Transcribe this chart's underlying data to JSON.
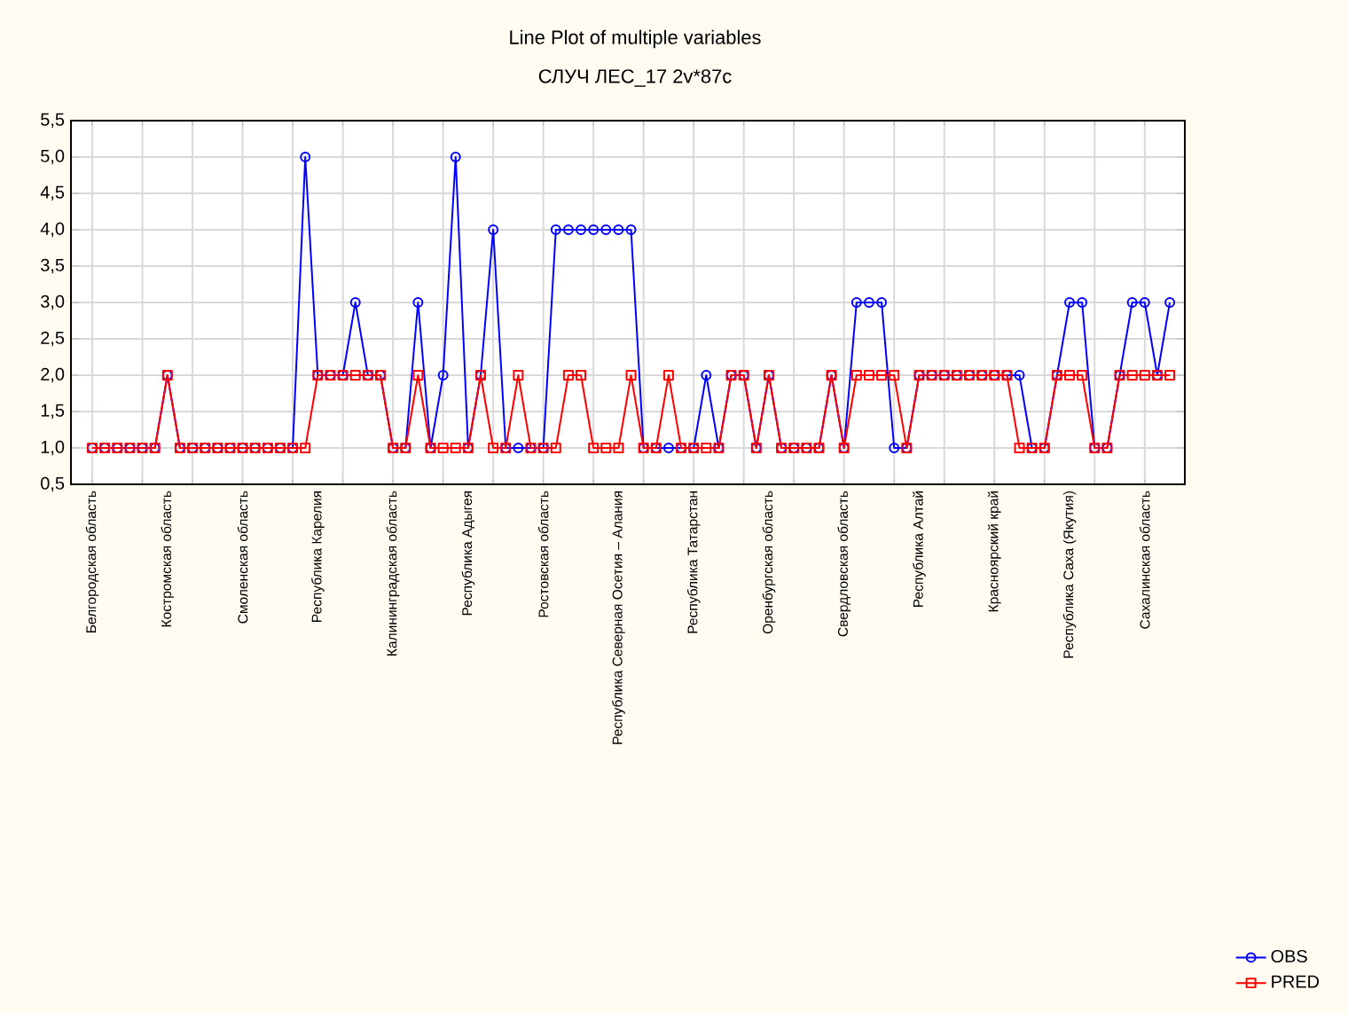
{
  "chart_data": {
    "type": "line",
    "title": "Line Plot of multiple variables",
    "subtitle": "СЛУЧ ЛЕС_17 2v*87c",
    "categories": [
      "Белгородская область",
      null,
      null,
      null,
      null,
      null,
      "Костромская область",
      null,
      null,
      null,
      null,
      null,
      "Смоленская область",
      null,
      null,
      null,
      null,
      null,
      "Республика  Карелия",
      null,
      null,
      null,
      null,
      null,
      "Калининградская область",
      null,
      null,
      null,
      null,
      null,
      "Республика  Адыгея",
      null,
      null,
      null,
      null,
      null,
      "Ростовская область",
      null,
      null,
      null,
      null,
      null,
      "Республика  Северная  Осетия  – Алания",
      null,
      null,
      null,
      null,
      null,
      "Республика Татарстан",
      null,
      null,
      null,
      null,
      null,
      "Оренбургская область",
      null,
      null,
      null,
      null,
      null,
      "Свердловская область",
      null,
      null,
      null,
      null,
      null,
      "Республика  Алтай",
      null,
      null,
      null,
      null,
      null,
      "Красноярский край",
      null,
      null,
      null,
      null,
      null,
      "Республика  Саха  (Якутия)",
      null,
      null,
      null,
      null,
      null,
      "Сахалинская область",
      null,
      null
    ],
    "series": [
      {
        "name": "OBS",
        "color": "#0000ff",
        "marker": "circle",
        "values": [
          1,
          1,
          1,
          1,
          1,
          1,
          2,
          1,
          1,
          1,
          1,
          1,
          1,
          1,
          1,
          1,
          1,
          5,
          2,
          2,
          2,
          3,
          2,
          2,
          1,
          1,
          3,
          1,
          2,
          5,
          1,
          2,
          4,
          1,
          1,
          1,
          1,
          4,
          4,
          4,
          4,
          4,
          4,
          4,
          1,
          1,
          1,
          1,
          1,
          2,
          1,
          2,
          2,
          1,
          2,
          1,
          1,
          1,
          1,
          2,
          1,
          3,
          3,
          3,
          1,
          1,
          2,
          2,
          2,
          2,
          2,
          2,
          2,
          2,
          2,
          1,
          1,
          2,
          3,
          3,
          1,
          1,
          2,
          3,
          3,
          2,
          3
        ]
      },
      {
        "name": "PRED",
        "color": "#ff0000",
        "marker": "square",
        "values": [
          1,
          1,
          1,
          1,
          1,
          1,
          2,
          1,
          1,
          1,
          1,
          1,
          1,
          1,
          1,
          1,
          1,
          1,
          2,
          2,
          2,
          2,
          2,
          2,
          1,
          1,
          2,
          1,
          1,
          1,
          1,
          2,
          1,
          1,
          2,
          1,
          1,
          1,
          2,
          2,
          1,
          1,
          1,
          2,
          1,
          1,
          2,
          1,
          1,
          1,
          1,
          2,
          2,
          1,
          2,
          1,
          1,
          1,
          1,
          2,
          1,
          2,
          2,
          2,
          2,
          1,
          2,
          2,
          2,
          2,
          2,
          2,
          2,
          2,
          1,
          1,
          1,
          2,
          2,
          2,
          1,
          1,
          2,
          2,
          2,
          2,
          2
        ]
      }
    ],
    "ylim": [
      0.5,
      5.5
    ],
    "yticks": [
      {
        "value": 0.5,
        "label": "0,5"
      },
      {
        "value": 1,
        "label": "1,0"
      },
      {
        "value": 1.5,
        "label": "1,5"
      },
      {
        "value": 2,
        "label": "2,0"
      },
      {
        "value": 2.5,
        "label": "2,5"
      },
      {
        "value": 3,
        "label": "3,0"
      },
      {
        "value": 3.5,
        "label": "3,5"
      },
      {
        "value": 4,
        "label": "4,0"
      },
      {
        "value": 4.5,
        "label": "4,5"
      },
      {
        "value": 5,
        "label": "5,0"
      },
      {
        "value": 5.5,
        "label": "5,5"
      }
    ],
    "grid": true,
    "legend": "bottom right"
  }
}
